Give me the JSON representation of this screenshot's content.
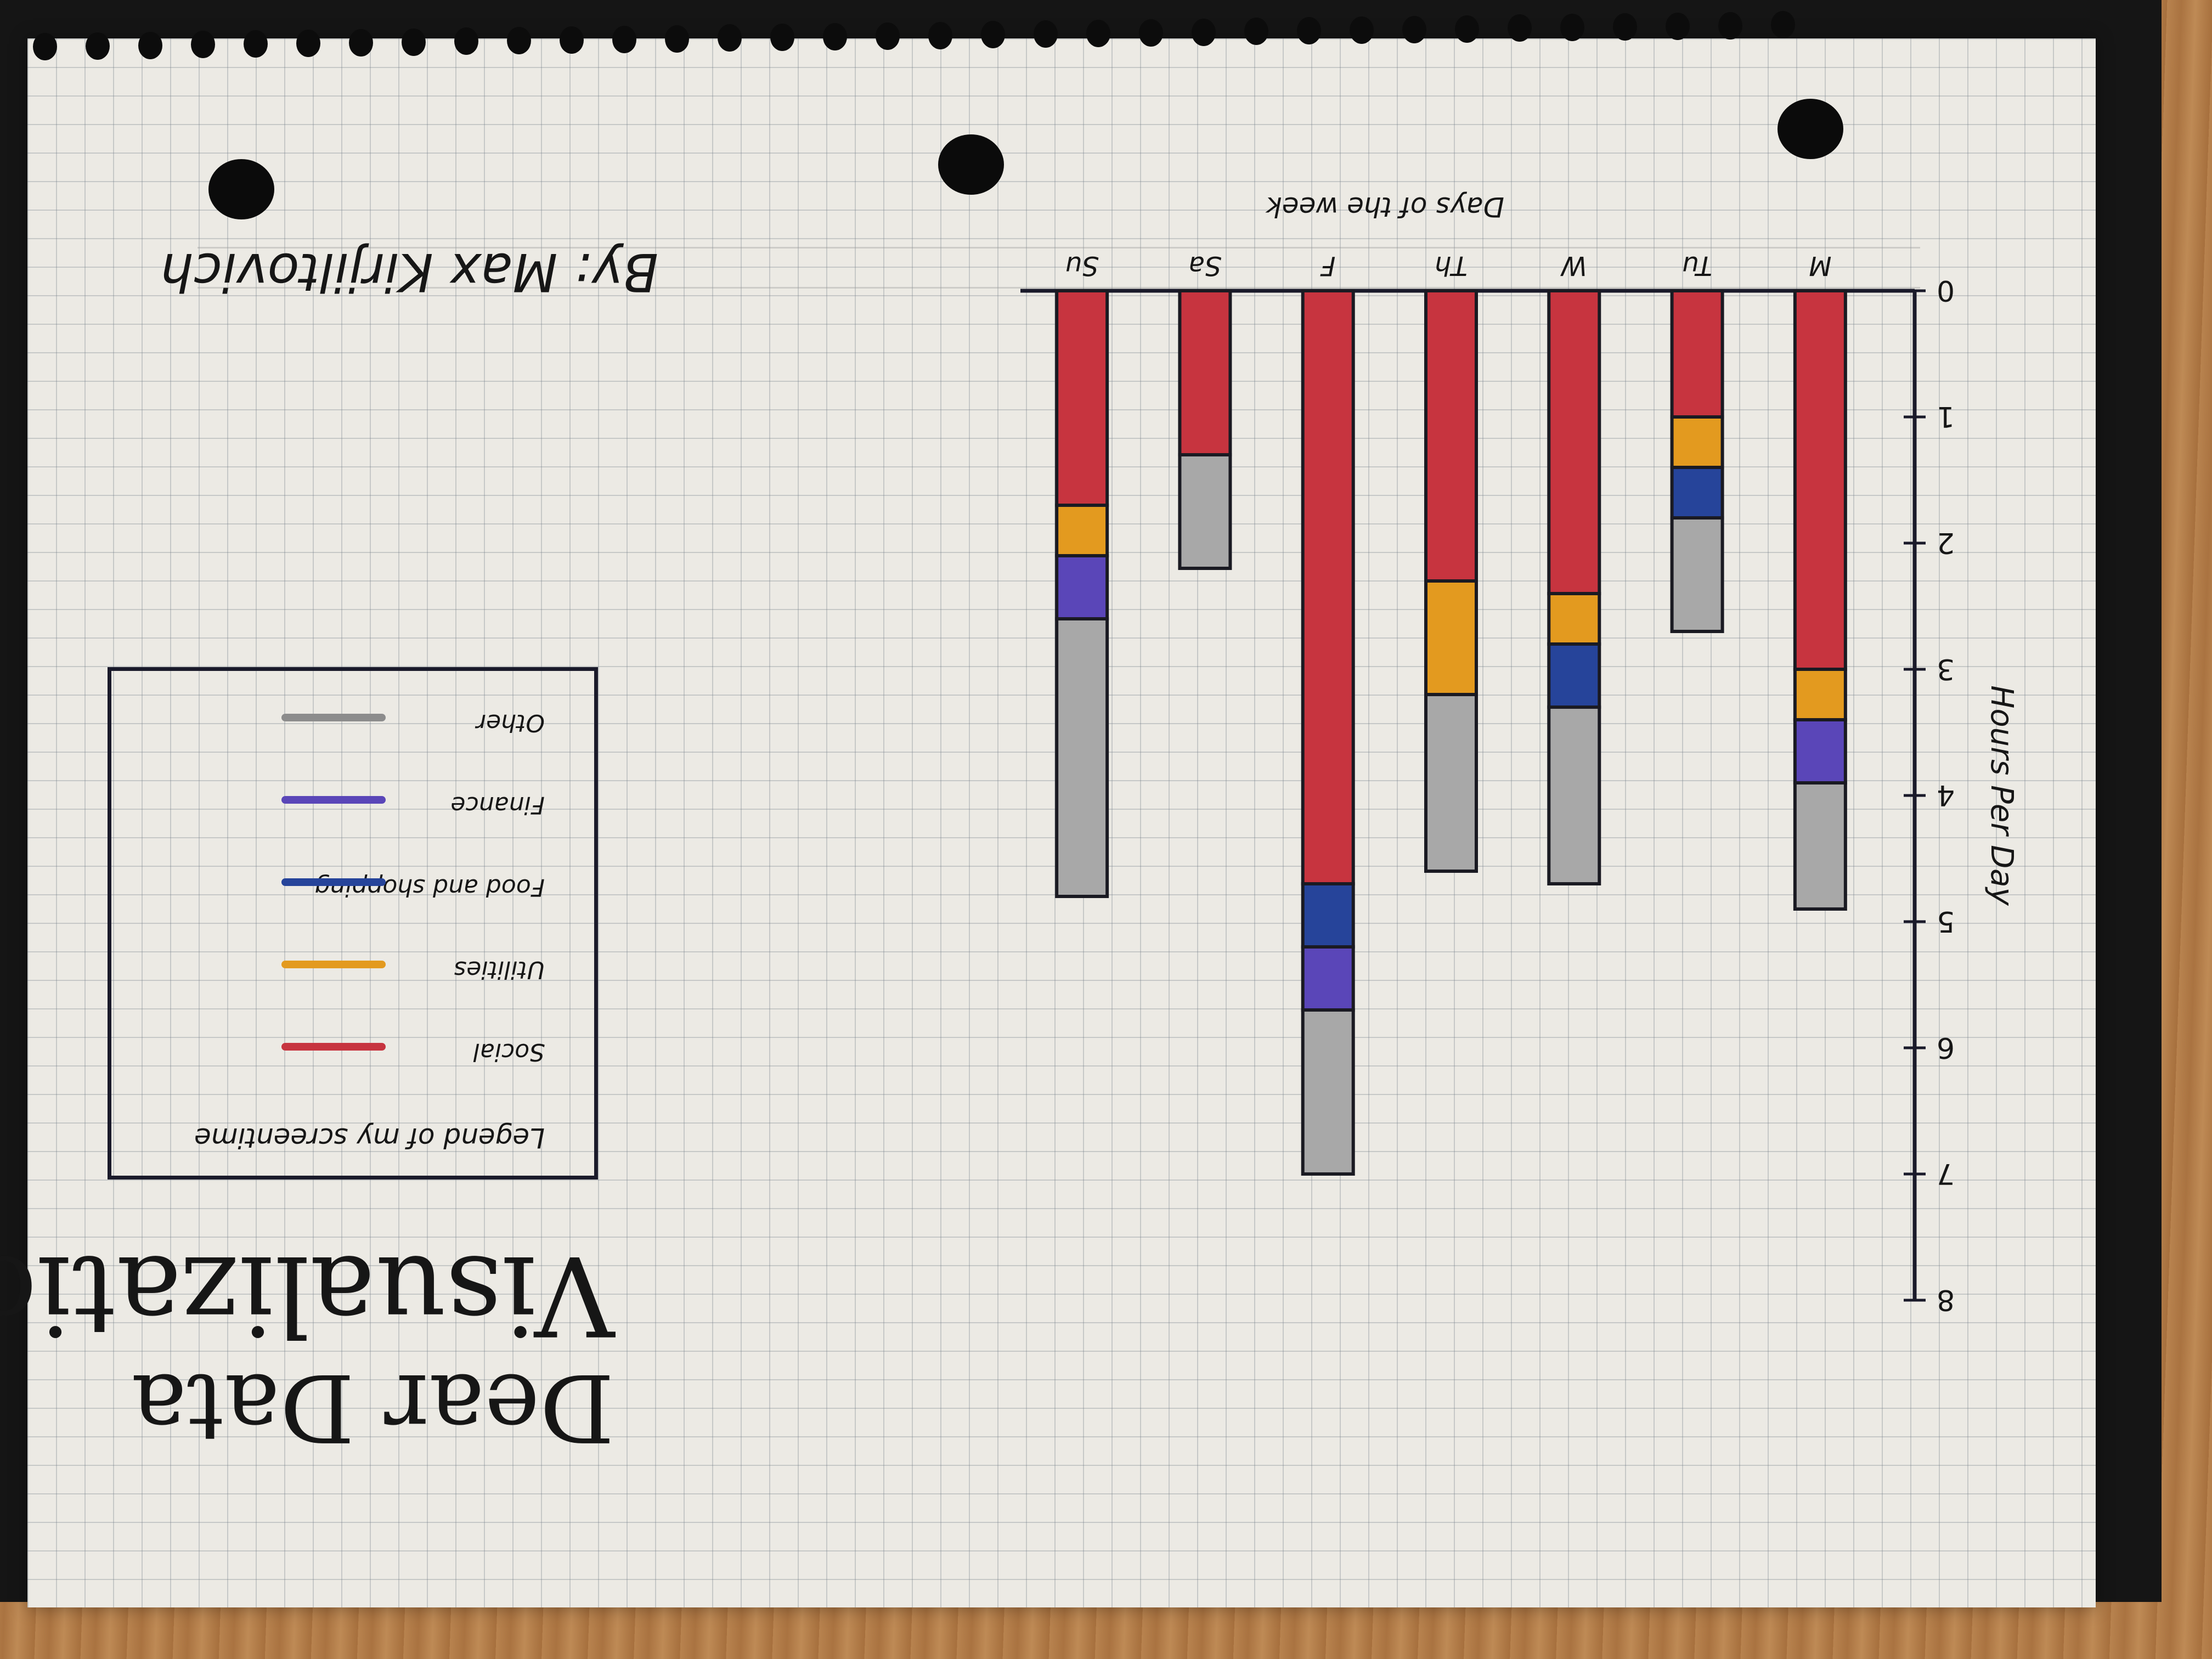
{
  "page": {
    "title_line1": "Dear Data",
    "title_line2": "Visualization",
    "byline": "By: Max Kirjiltovich"
  },
  "legend": {
    "title": "Legend of my screentime",
    "items": [
      {
        "label": "Social",
        "color": "#c7343f"
      },
      {
        "label": "Utilities",
        "color": "#e39a1f"
      },
      {
        "label": "Food and shopping",
        "color": "#26449a"
      },
      {
        "label": "Finance",
        "color": "#5a46b8"
      },
      {
        "label": "Other",
        "color": "#8c8c8c"
      }
    ]
  },
  "chart_data": {
    "type": "bar",
    "stacked": true,
    "orientation": "vertical",
    "title": "",
    "xlabel": "Days of the week",
    "ylabel": "Hours Per Day",
    "ylim": [
      0,
      8
    ],
    "yticks": [
      0,
      1,
      2,
      3,
      4,
      5,
      6,
      7,
      8
    ],
    "ytick_labels": [
      "0",
      "1",
      "2",
      "3",
      "4",
      "5",
      "6",
      "7",
      "8"
    ],
    "categories": [
      "M",
      "Tu",
      "W",
      "Th",
      "F",
      "Sa",
      "Su"
    ],
    "series": [
      {
        "name": "Social",
        "color": "#c7343f",
        "values": [
          3.0,
          1.0,
          2.4,
          2.3,
          4.7,
          1.3,
          1.7
        ]
      },
      {
        "name": "Utilities",
        "color": "#e39a1f",
        "values": [
          0.4,
          0.4,
          0.4,
          0.9,
          0,
          0,
          0.4
        ]
      },
      {
        "name": "Food and shopping",
        "color": "#26449a",
        "values": [
          0,
          0.4,
          0.5,
          0,
          0.5,
          0,
          0
        ]
      },
      {
        "name": "Finance",
        "color": "#5a46b8",
        "values": [
          0.5,
          0,
          0,
          0,
          0.5,
          0,
          0.5
        ]
      },
      {
        "name": "Other",
        "color": "#a8a8a8",
        "values": [
          1.0,
          0.9,
          1.4,
          1.4,
          1.3,
          0.9,
          2.2
        ]
      }
    ],
    "legend_position": "left",
    "grid": true
  }
}
